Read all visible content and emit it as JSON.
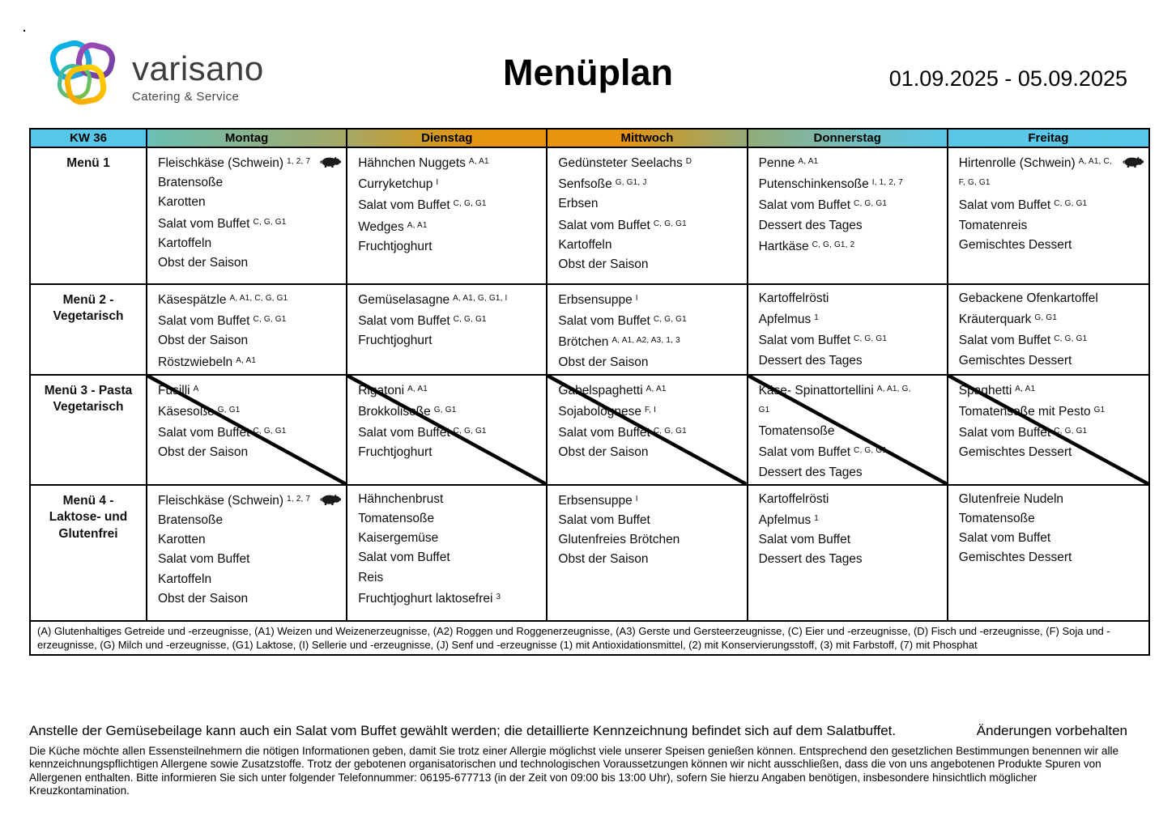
{
  "page": {
    "corner_dot": "."
  },
  "header": {
    "logo": {
      "brand": "varisano",
      "tagline": "Catering & Service"
    },
    "title": "Menüplan",
    "date_range": "01.09.2025 - 05.09.2025"
  },
  "colors": {
    "header_cyan": "#57c7e9",
    "header_olive": "#a6a765",
    "header_orange": "#e8940e",
    "border": "#000000",
    "logo_cyan": "#00b7e8",
    "logo_purple": "#93278f",
    "logo_orange": "#f7a600"
  },
  "table": {
    "week_label": "KW 36",
    "day_headers": [
      "Montag",
      "Dienstag",
      "Mittwoch",
      "Donnerstag",
      "Freitag"
    ],
    "rows": [
      {
        "label": "Menü 1",
        "struck": false,
        "days": [
          {
            "items": [
              {
                "text": "Fleischkäse (Schwein)",
                "sup": "1, 2, 7",
                "icon": "pig"
              },
              {
                "text": "Bratensoße"
              },
              {
                "text": "Karotten"
              },
              {
                "text": "Salat vom Buffet",
                "sup": "C, G, G1"
              },
              {
                "text": "Kartoffeln"
              },
              {
                "text": "Obst der Saison"
              }
            ]
          },
          {
            "items": [
              {
                "text": "Hähnchen Nuggets",
                "sup": "A, A1"
              },
              {
                "text": "Curryketchup",
                "sup": "I"
              },
              {
                "text": "Salat vom Buffet",
                "sup": "C, G, G1"
              },
              {
                "text": "Wedges",
                "sup": "A, A1"
              },
              {
                "text": "Fruchtjoghurt"
              }
            ]
          },
          {
            "items": [
              {
                "text": "Gedünsteter Seelachs",
                "sup": "D"
              },
              {
                "text": "Senfsoße",
                "sup": "G, G1, J"
              },
              {
                "text": "Erbsen"
              },
              {
                "text": "Salat vom Buffet",
                "sup": "C, G, G1"
              },
              {
                "text": "Kartoffeln"
              },
              {
                "text": "Obst der Saison"
              }
            ]
          },
          {
            "items": [
              {
                "text": "Penne",
                "sup": "A, A1"
              },
              {
                "text": "Putenschinkensoße",
                "sup": "I, 1, 2, 7"
              },
              {
                "text": "Salat vom Buffet",
                "sup": "C, G, G1"
              },
              {
                "text": "Dessert des Tages"
              },
              {
                "text": "Hartkäse",
                "sup": "C, G, G1, 2"
              }
            ]
          },
          {
            "items": [
              {
                "text": "Hirtenrolle (Schwein)",
                "sup": "A, A1, C, F, G, G1",
                "icon": "pig"
              },
              {
                "text": "Salat vom Buffet",
                "sup": "C, G, G1"
              },
              {
                "text": "Tomatenreis"
              },
              {
                "text": "Gemischtes Dessert"
              }
            ]
          }
        ]
      },
      {
        "label": "Menü 2 -\nVegetarisch",
        "struck": false,
        "days": [
          {
            "items": [
              {
                "text": "Käsespätzle",
                "sup": "A, A1, C, G, G1"
              },
              {
                "text": "Salat vom Buffet",
                "sup": "C, G, G1"
              },
              {
                "text": "Obst der Saison"
              },
              {
                "text": "Röstzwiebeln",
                "sup": "A, A1"
              }
            ]
          },
          {
            "items": [
              {
                "text": "Gemüselasagne",
                "sup": "A, A1, G, G1, I"
              },
              {
                "text": "Salat vom Buffet",
                "sup": "C, G, G1"
              },
              {
                "text": "Fruchtjoghurt"
              }
            ]
          },
          {
            "items": [
              {
                "text": "Erbsensuppe",
                "sup": "I"
              },
              {
                "text": "Salat vom Buffet",
                "sup": "C, G, G1"
              },
              {
                "text": "Brötchen",
                "sup": "A, A1, A2, A3, 1, 3"
              },
              {
                "text": "Obst der Saison"
              }
            ]
          },
          {
            "items": [
              {
                "text": "Kartoffelrösti"
              },
              {
                "text": "Apfelmus",
                "sup": "1"
              },
              {
                "text": "Salat vom Buffet",
                "sup": "C, G, G1"
              },
              {
                "text": "Dessert des Tages"
              }
            ]
          },
          {
            "items": [
              {
                "text": "Gebackene Ofenkartoffel"
              },
              {
                "text": "Kräuterquark",
                "sup": "G, G1"
              },
              {
                "text": "Salat vom Buffet",
                "sup": "C, G, G1"
              },
              {
                "text": "Gemischtes Dessert"
              }
            ]
          }
        ]
      },
      {
        "label": "Menü 3 - Pasta\nVegetarisch",
        "struck": true,
        "days": [
          {
            "items": [
              {
                "text": "Fusilli",
                "sup": "A"
              },
              {
                "text": "Käsesoße",
                "sup": "G, G1"
              },
              {
                "text": "Salat vom Buffet",
                "sup": "C, G, G1"
              },
              {
                "text": "Obst der Saison"
              }
            ]
          },
          {
            "items": [
              {
                "text": "Rigatoni",
                "sup": "A, A1"
              },
              {
                "text": "Brokkolisoße",
                "sup": "G, G1"
              },
              {
                "text": "Salat vom Buffet",
                "sup": "C, G, G1"
              },
              {
                "text": "Fruchtjoghurt"
              }
            ]
          },
          {
            "items": [
              {
                "text": "Gabelspaghetti",
                "sup": "A, A1"
              },
              {
                "text": "Sojabolognese",
                "sup": "F, I"
              },
              {
                "text": "Salat vom Buffet",
                "sup": "C, G, G1"
              },
              {
                "text": "Obst der Saison"
              }
            ]
          },
          {
            "items": [
              {
                "text": "Käse- Spinattortellini",
                "sup": "A, A1, G, G1"
              },
              {
                "text": "Tomatensoße"
              },
              {
                "text": "Salat vom Buffet",
                "sup": "C, G, G1"
              },
              {
                "text": "Dessert des Tages"
              }
            ]
          },
          {
            "items": [
              {
                "text": "Spaghetti",
                "sup": "A, A1"
              },
              {
                "text": "Tomatensoße mit Pesto",
                "sup": "G1"
              },
              {
                "text": "Salat vom Buffet",
                "sup": "C, G, G1"
              },
              {
                "text": "Gemischtes Dessert"
              }
            ]
          }
        ]
      },
      {
        "label": "Menü 4 -\nLaktose- und\nGlutenfrei",
        "struck": false,
        "days": [
          {
            "items": [
              {
                "text": "Fleischkäse (Schwein)",
                "sup": "1, 2, 7",
                "icon": "pig"
              },
              {
                "text": "Bratensoße"
              },
              {
                "text": "Karotten"
              },
              {
                "text": "Salat vom Buffet"
              },
              {
                "text": "Kartoffeln"
              },
              {
                "text": "Obst der Saison"
              }
            ]
          },
          {
            "items": [
              {
                "text": "Hähnchenbrust"
              },
              {
                "text": "Tomatensoße"
              },
              {
                "text": "Kaisergemüse"
              },
              {
                "text": "Salat vom Buffet"
              },
              {
                "text": "Reis"
              },
              {
                "text": "Fruchtjoghurt laktosefrei",
                "sup": "3"
              }
            ]
          },
          {
            "items": [
              {
                "text": "Erbsensuppe",
                "sup": "I"
              },
              {
                "text": "Salat vom Buffet"
              },
              {
                "text": "Glutenfreies Brötchen"
              },
              {
                "text": "Obst der Saison"
              }
            ]
          },
          {
            "items": [
              {
                "text": "Kartoffelrösti"
              },
              {
                "text": "Apfelmus",
                "sup": "1"
              },
              {
                "text": "Salat vom Buffet"
              },
              {
                "text": "Dessert des Tages"
              }
            ]
          },
          {
            "items": [
              {
                "text": "Glutenfreie Nudeln"
              },
              {
                "text": "Tomatensoße"
              },
              {
                "text": "Salat vom Buffet"
              },
              {
                "text": "Gemischtes Dessert"
              }
            ]
          }
        ]
      }
    ],
    "legend": "(A) Glutenhaltiges Getreide und -erzeugnisse, (A1) Weizen und Weizenerzeugnisse, (A2) Roggen und Roggenerzeugnisse, (A3) Gerste und Gersteerzeugnisse, (C) Eier und -erzeugnisse, (D) Fisch und -erzeugnisse, (F) Soja und -erzeugnisse, (G) Milch und -erzeugnisse, (G1) Laktose, (I) Sellerie und -erzeugnisse, (J) Senf und -erzeugnisse (1) mit Antioxidationsmittel, (2) mit Konservierungsstoff, (3) mit Farbstoff, (7) mit Phosphat"
  },
  "footer": {
    "note": "Anstelle der Gemüsebeilage kann auch ein Salat vom Buffet gewählt werden; die detaillierte Kennzeichnung befindet sich auf dem Salatbuffet.",
    "changes": "Änderungen vorbehalten",
    "allergy_info": "Die Küche möchte allen Essensteilnehmern die nötigen Informationen geben, damit Sie trotz einer Allergie möglichst viele unserer Speisen genießen können. Entsprechend den gesetzlichen Bestimmungen benennen wir alle kennzeichnungspflichtigen Allergene sowie Zusatzstoffe. Trotz der gebotenen organisatorischen und technologischen Voraussetzungen können wir nicht ausschließen, dass die von uns angebotenen Produkte Spuren von Allergenen enthalten. Bitte informieren Sie sich unter folgender Telefonnummer: 06195-677713 (in der Zeit von 09:00 bis 13:00 Uhr), sofern Sie hierzu Angaben benötigen, insbesondere hinsichtlich möglicher Kreuzkontamination."
  }
}
